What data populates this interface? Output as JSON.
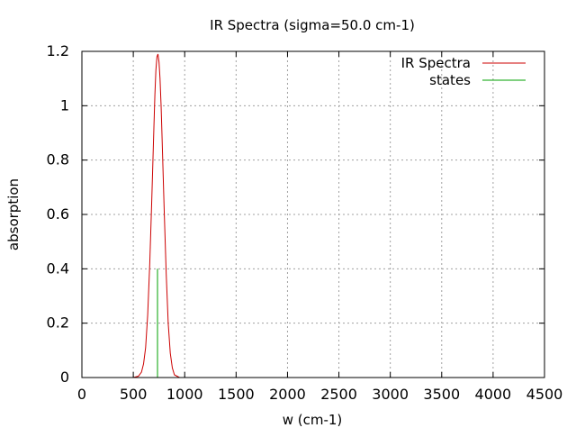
{
  "chart_data": {
    "type": "line",
    "title": "IR Spectra (sigma=50.0 cm-1)",
    "xlabel": "w (cm-1)",
    "ylabel": "absorption",
    "xlim": [
      0,
      4500
    ],
    "ylim": [
      0,
      1.2
    ],
    "x_ticks": [
      0,
      500,
      1000,
      1500,
      2000,
      2500,
      3000,
      3500,
      4000,
      4500
    ],
    "x_tick_labels": [
      "0",
      "500",
      "1000",
      "1500",
      "2000",
      "2500",
      "3000",
      "3500",
      "4000",
      "4500"
    ],
    "y_ticks": [
      0,
      0.2,
      0.4,
      0.6,
      0.8,
      1.0,
      1.2
    ],
    "y_tick_labels": [
      "0",
      "0.2",
      "0.4",
      "0.6",
      "0.8",
      "1",
      "1.2"
    ],
    "grid": true,
    "legend_position": "top-right",
    "series": [
      {
        "name": "IR Spectra",
        "color": "#cc0000",
        "x": [
          250,
          300,
          350,
          500,
          550,
          580,
          600,
          620,
          640,
          660,
          680,
          700,
          710,
          720,
          730,
          740,
          750,
          760,
          770,
          780,
          800,
          820,
          840,
          860,
          880,
          900,
          950
        ],
        "y": [
          0.0,
          0.0,
          0.0,
          0.0,
          0.005,
          0.02,
          0.05,
          0.11,
          0.23,
          0.42,
          0.66,
          0.92,
          1.04,
          1.13,
          1.18,
          1.19,
          1.16,
          1.1,
          1.0,
          0.88,
          0.62,
          0.38,
          0.2,
          0.09,
          0.035,
          0.01,
          0.0
        ]
      },
      {
        "name": "states",
        "color": "#00a000",
        "x": [
          735,
          735
        ],
        "y": [
          0,
          0.4
        ]
      }
    ]
  }
}
